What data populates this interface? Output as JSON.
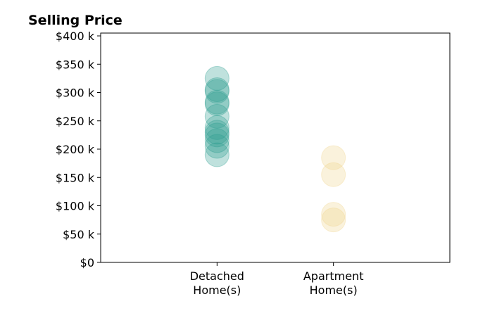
{
  "chart_data": {
    "type": "scatter",
    "title": "Selling Price",
    "xlabel": "",
    "ylabel": "",
    "categories": [
      "Detached\nHome(s)",
      "Apartment\nHome(s)"
    ],
    "yticks": [
      {
        "value": 0,
        "label": "$0"
      },
      {
        "value": 50000,
        "label": "$50 k"
      },
      {
        "value": 100000,
        "label": "$100 k"
      },
      {
        "value": 150000,
        "label": "$150 k"
      },
      {
        "value": 200000,
        "label": "$200 k"
      },
      {
        "value": 250000,
        "label": "$250 k"
      },
      {
        "value": 300000,
        "label": "$300 k"
      },
      {
        "value": 350000,
        "label": "$350 k"
      },
      {
        "value": 400000,
        "label": "$400 k"
      }
    ],
    "ylim": [
      0,
      405000
    ],
    "xlim": [
      -1,
      2
    ],
    "grid": false,
    "series": [
      {
        "category": "Detached\nHome(s)",
        "color": "#2a9d8f",
        "values": [
          325000,
          305000,
          302000,
          283000,
          280000,
          258000,
          238000,
          230000,
          225000,
          215000,
          205000,
          190000
        ]
      },
      {
        "category": "Apartment\nHome(s)",
        "color": "#f0d48c",
        "values": [
          185000,
          155000,
          85000,
          75000
        ]
      }
    ]
  }
}
